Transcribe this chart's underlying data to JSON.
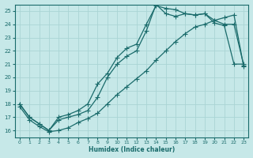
{
  "xlabel": "Humidex (Indice chaleur)",
  "xlim": [
    -0.5,
    23.5
  ],
  "ylim": [
    15.5,
    25.5
  ],
  "yticks": [
    16,
    17,
    18,
    19,
    20,
    21,
    22,
    23,
    24,
    25
  ],
  "xticks": [
    0,
    1,
    2,
    3,
    4,
    5,
    6,
    7,
    8,
    9,
    10,
    11,
    12,
    13,
    14,
    15,
    16,
    17,
    18,
    19,
    20,
    21,
    22,
    23
  ],
  "bg_color": "#c6e8e8",
  "grid_color": "#aad4d4",
  "line_color": "#1a6b6b",
  "curve1_x": [
    0,
    1,
    2,
    3,
    4,
    5,
    6,
    7,
    8,
    9,
    10,
    11,
    12,
    13,
    14,
    15,
    16,
    17,
    18,
    19,
    20,
    21,
    22,
    23
  ],
  "curve1_y": [
    18.0,
    17.0,
    16.5,
    16.0,
    17.0,
    17.2,
    17.5,
    18.0,
    19.5,
    20.3,
    21.5,
    22.2,
    22.5,
    24.0,
    25.4,
    25.2,
    25.1,
    24.8,
    24.7,
    24.8,
    24.1,
    23.9,
    21.0,
    21.0
  ],
  "curve2_x": [
    0,
    1,
    2,
    3,
    4,
    5,
    6,
    7,
    8,
    9,
    10,
    11,
    12,
    13,
    14,
    15,
    16,
    17,
    18,
    19,
    20,
    21,
    22,
    23
  ],
  "curve2_y": [
    18.0,
    17.0,
    16.5,
    16.0,
    16.8,
    17.0,
    17.2,
    17.5,
    18.5,
    20.0,
    21.0,
    21.6,
    22.0,
    23.5,
    25.5,
    24.8,
    24.6,
    24.8,
    24.7,
    24.8,
    24.3,
    24.0,
    24.0,
    20.9
  ],
  "curve3_x": [
    0,
    1,
    2,
    3,
    4,
    5,
    6,
    7,
    8,
    9,
    10,
    11,
    12,
    13,
    14,
    15,
    16,
    17,
    18,
    19,
    20,
    21,
    22,
    23
  ],
  "curve3_y": [
    17.8,
    16.8,
    16.3,
    15.9,
    16.0,
    16.2,
    16.6,
    16.9,
    17.3,
    18.0,
    18.7,
    19.3,
    19.9,
    20.5,
    21.3,
    22.0,
    22.7,
    23.3,
    23.8,
    24.0,
    24.3,
    24.5,
    24.7,
    20.8
  ]
}
